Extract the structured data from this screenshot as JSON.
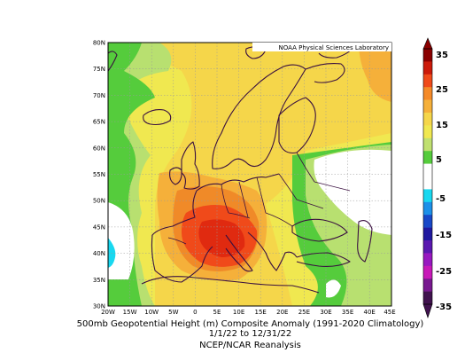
{
  "credit": "NOAA Physical Sciences Laboratory",
  "caption": {
    "line1": "500mb Geopotential Height (m) Composite Anomaly (1991-2020 Climatology)",
    "line2": "1/1/22  to 12/31/22",
    "line3": "NCEP/NCAR Reanalysis"
  },
  "axes": {
    "x_ticks": [
      "20W",
      "15W",
      "10W",
      "5W",
      "0",
      "5E",
      "10E",
      "15E",
      "20E",
      "25E",
      "30E",
      "35E",
      "40E",
      "45E"
    ],
    "y_ticks": [
      "80N",
      "75N",
      "70N",
      "65N",
      "60N",
      "55N",
      "50N",
      "45N",
      "40N",
      "35N",
      "30N"
    ]
  },
  "colorbar": {
    "labels": [
      "35",
      "25",
      "15",
      "5",
      "-5",
      "-15",
      "-25",
      "-35"
    ],
    "colors": [
      "#8b0000",
      "#cc1a0a",
      "#f04a1a",
      "#f58a28",
      "#f5b03a",
      "#f5d64a",
      "#f0e850",
      "#c0e070",
      "#55cc3c",
      "#ffffff",
      "#ffffff",
      "#18d8f0",
      "#1c90e8",
      "#1848c8",
      "#2018a0",
      "#5a18b0",
      "#9818c0",
      "#c818b8",
      "#781890",
      "#40124e"
    ]
  },
  "map_data": {
    "region": {
      "lon": [
        -20,
        45
      ],
      "lat": [
        30,
        80
      ]
    },
    "field": "500mb geopotential height anomaly",
    "units": "m",
    "max_anomaly_center": {
      "lon": 5,
      "lat": 42,
      "level": ">25"
    }
  }
}
